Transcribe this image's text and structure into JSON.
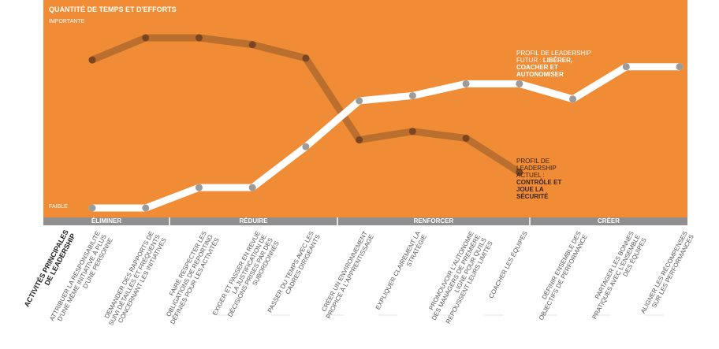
{
  "chart_data": {
    "type": "line",
    "title": "QUANTITÉ DE TEMPS ET D'EFFORTS",
    "y_high_label": "IMPORTANTE",
    "y_low_label": "FAIBLE",
    "x_label": "ACTIVITÉS PRINCIPALES DE LEADERSHIP",
    "sections": [
      "ÉLIMINER",
      "RÉDUIRE",
      "RENFORCER",
      "CRÉER"
    ],
    "categories": [
      "ATTRIBUER LA RESPONSABILITÉ D'UNE MÊME INITIATIVE À PLUS D'UNE PERSONNE",
      "DEMANDER DES RAPPORTS DE SUIVI DÉTAILLÉS ET FRÉQUENTS CONCERNANT LES INITIATIVES",
      "FAIRE RESPECTER LES OBLIGATIONS DE REPORTING DÉFINIES POUR LES ACTIVITÉS",
      "EXIGER ET PASSER EN REVUE LA JUSTIFICATION DE DÉCISIONS PRISES PAR DES SUBORDONNÉS",
      "PASSER DU TEMPS AVEC LES CADRES DIRIGEANTS",
      "CRÉER UN ENVIRONNEMENT PROPICE À L'APPRENTISSAGE",
      "EXPLIQUER CLAIREMENT LA STRATÉGIE",
      "PROMOUVOIR L'AUTONOMIE DES MANAGERS DE PREMIÈRE LIGNE POUR QU'ILS REPOUSSENT LEURS LIMITES",
      "COACHER LES ÉQUIPES",
      "DÉFINIR ENSEMBLE DES OBJECTIFS DE PERFORMANCE",
      "PARTAGER LES BONNES PRATIQUES AVEC L'ENSEMBLE DES ÉQUIPES",
      "ALIGNER LES RÉCOMPENSES SUR LES PERFORMANCES"
    ],
    "series": [
      {
        "name": "PROFIL DE LEADERSHIP ACTUEL :",
        "detail": "CONTRÔLE ET JOUE LA SÉCURITÉ",
        "color": "#a8662e",
        "values": [
          87,
          100,
          100,
          96,
          88,
          40,
          45,
          41,
          21,
          null,
          null,
          null
        ]
      },
      {
        "name": "PROFIL DE LEADERSHIP FUTUR :",
        "detail": "LIBÉRER, COACHER ET AUTONOMISER",
        "color": "#ffffff",
        "values": [
          0,
          0,
          12,
          12,
          36,
          63,
          66,
          73,
          73,
          64,
          83,
          83
        ]
      }
    ],
    "point_color": "#9b9b9b",
    "background": "#ef8c35",
    "ylim": [
      0,
      100
    ]
  }
}
